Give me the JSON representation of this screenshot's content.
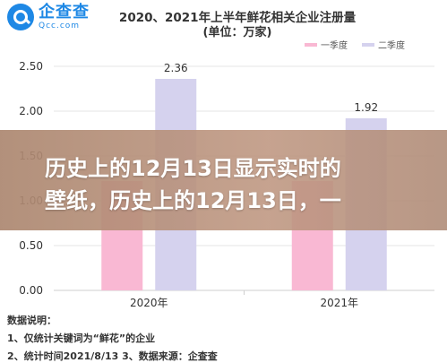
{
  "logo": {
    "name_cn": "企查查",
    "name_en": "Qcc.com"
  },
  "colors": {
    "q1": "#f9b8d3",
    "q2": "#d5d2ee",
    "grid": "#e4e4e4",
    "overlay": "#b08a72",
    "brand": "#1e88e5"
  },
  "chart_data": {
    "type": "bar",
    "title": "2020、2021年上半年鲜花相关企业注册量",
    "subtitle": "(单位：万家)",
    "categories": [
      "2020年",
      "2021年"
    ],
    "series": [
      {
        "name": "一季度",
        "values": [
          1.22,
          1.22
        ]
      },
      {
        "name": "二季度",
        "values": [
          2.36,
          1.92
        ]
      }
    ],
    "data_labels": [
      "2.36",
      "1.92"
    ],
    "ylim": [
      0,
      2.5
    ],
    "yticks": [
      "0.00",
      "0.50",
      "1.00",
      "1.50",
      "2.00",
      "2.50"
    ],
    "grid": true,
    "legend": "top-right"
  },
  "notes": {
    "title": "数据说明：",
    "line1": "1、仅统计关键词为“鲜花”的企业",
    "line2": "2、统计时间2021/8/13  3、数据来源：企查查"
  },
  "overlay": {
    "line1": "历史上的12月13日显示实时的",
    "line2": "壁纸，历史上的12月13日，一"
  }
}
